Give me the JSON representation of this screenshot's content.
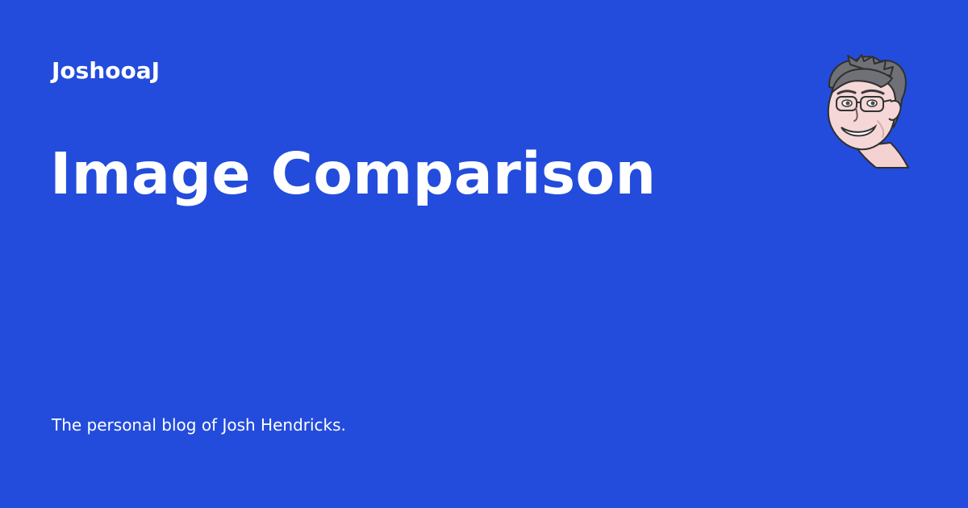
{
  "site": {
    "name": "JoshooaJ"
  },
  "post": {
    "title": "Image Comparison"
  },
  "footer": {
    "tagline": "The personal blog of Josh Hendricks."
  },
  "avatar": {
    "icon": "cartoon-avatar-icon"
  },
  "colors": {
    "background": "#234cdc",
    "text": "#ffffff"
  }
}
